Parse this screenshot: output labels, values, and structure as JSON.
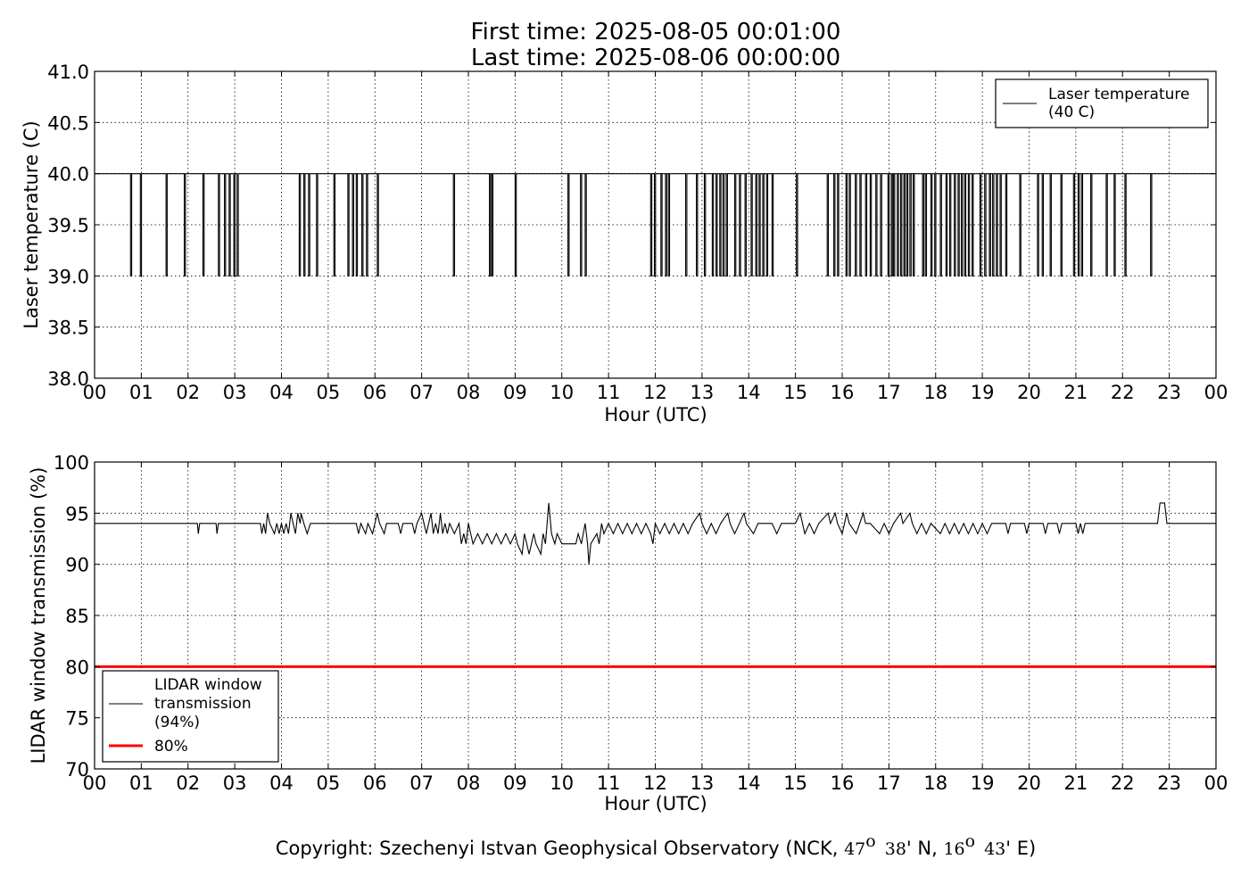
{
  "title_lines": [
    "First time: 2025-08-05 00:01:00",
    "Last time: 2025-08-06 00:00:00"
  ],
  "copyright": {
    "text_before": "Copyright: Szechenyi Istvan Geophysical Observatory (NCK, ",
    "lat_deg": "47",
    "lat_min": "38",
    "lat_tail": "' N, ",
    "lon_deg": "16",
    "lon_min": "43",
    "lon_tail": "' E)",
    "deg_mark": "o"
  },
  "colors": {
    "line": "#000000",
    "threshold": "#ff0000",
    "grid": "#000000"
  },
  "chart_data": [
    {
      "type": "line",
      "xlabel": "Hour (UTC)",
      "ylabel": "Laser temperature (C)",
      "xlim": [
        0,
        24
      ],
      "ylim": [
        38.0,
        41.0
      ],
      "x_tick_labels": [
        "00",
        "01",
        "02",
        "03",
        "04",
        "05",
        "06",
        "07",
        "08",
        "09",
        "10",
        "11",
        "12",
        "13",
        "14",
        "15",
        "16",
        "17",
        "18",
        "19",
        "20",
        "21",
        "22",
        "23",
        "00"
      ],
      "y_ticks": [
        38.0,
        38.5,
        39.0,
        39.5,
        40.0,
        40.5,
        41.0
      ],
      "y_tick_labels": [
        "38.0",
        "38.5",
        "39.0",
        "39.5",
        "40.0",
        "40.5",
        "41.0"
      ],
      "grid": true,
      "legend": {
        "placement": "top-right",
        "entries": [
          "Laser temperature\n(40 C)"
        ]
      },
      "series": [
        {
          "name": "Laser temperature\n(40 C)",
          "baseline": 40.0,
          "dip_value": 39.0,
          "dips_hours": [
            0.77,
            0.98,
            1.53,
            1.92,
            2.32,
            2.65,
            2.78,
            2.88,
            2.98,
            3.05,
            4.38,
            4.48,
            4.58,
            4.75,
            5.12,
            5.42,
            5.52,
            5.6,
            5.72,
            5.82,
            6.05,
            7.68,
            8.45,
            8.5,
            9.0,
            10.13,
            10.4,
            10.5,
            11.9,
            11.98,
            12.12,
            12.22,
            12.28,
            12.65,
            12.88,
            13.05,
            13.22,
            13.3,
            13.38,
            13.45,
            13.52,
            13.7,
            13.8,
            13.92,
            14.05,
            14.15,
            14.22,
            14.3,
            14.38,
            14.5,
            15.02,
            15.68,
            15.82,
            15.9,
            16.08,
            16.15,
            16.28,
            16.38,
            16.5,
            16.6,
            16.72,
            16.82,
            16.98,
            17.05,
            17.1,
            17.18,
            17.25,
            17.32,
            17.38,
            17.45,
            17.52,
            17.72,
            17.78,
            17.9,
            17.98,
            18.1,
            18.22,
            18.3,
            18.4,
            18.48,
            18.55,
            18.62,
            18.7,
            18.78,
            18.95,
            19.05,
            19.15,
            19.22,
            19.3,
            19.38,
            19.5,
            19.8,
            20.18,
            20.28,
            20.45,
            20.68,
            20.95,
            21.05,
            21.12,
            21.32,
            21.65,
            21.82,
            22.05,
            22.6
          ]
        }
      ]
    },
    {
      "type": "line",
      "xlabel": "Hour (UTC)",
      "ylabel": "LIDAR window transmission (%)",
      "xlim": [
        0,
        24
      ],
      "ylim": [
        70,
        100
      ],
      "x_tick_labels": [
        "00",
        "01",
        "02",
        "03",
        "04",
        "05",
        "06",
        "07",
        "08",
        "09",
        "10",
        "11",
        "12",
        "13",
        "14",
        "15",
        "16",
        "17",
        "18",
        "19",
        "20",
        "21",
        "22",
        "23",
        "00"
      ],
      "y_ticks": [
        70,
        75,
        80,
        85,
        90,
        95,
        100
      ],
      "y_tick_labels": [
        "70",
        "75",
        "80",
        "85",
        "90",
        "95",
        "100"
      ],
      "grid": true,
      "legend": {
        "placement": "bottom-left",
        "entries": [
          "LIDAR window\ntransmission\n(94%)",
          "80%"
        ]
      },
      "series": [
        {
          "name": "LIDAR window\ntransmission\n(94%)",
          "baseline": 94,
          "points": [
            [
              0,
              94
            ],
            [
              2.2,
              94
            ],
            [
              2.22,
              93
            ],
            [
              2.25,
              94
            ],
            [
              2.6,
              94
            ],
            [
              2.62,
              93
            ],
            [
              2.65,
              94
            ],
            [
              3.55,
              94
            ],
            [
              3.58,
              93
            ],
            [
              3.62,
              94
            ],
            [
              3.66,
              93
            ],
            [
              3.7,
              95
            ],
            [
              3.75,
              94
            ],
            [
              3.85,
              93
            ],
            [
              3.9,
              94
            ],
            [
              3.95,
              93
            ],
            [
              4.0,
              94
            ],
            [
              4.05,
              93
            ],
            [
              4.1,
              94
            ],
            [
              4.15,
              93
            ],
            [
              4.2,
              95
            ],
            [
              4.25,
              94
            ],
            [
              4.3,
              93
            ],
            [
              4.35,
              95
            ],
            [
              4.4,
              94
            ],
            [
              4.42,
              95
            ],
            [
              4.48,
              94
            ],
            [
              4.55,
              93
            ],
            [
              4.62,
              94
            ],
            [
              4.7,
              94
            ],
            [
              5.0,
              94
            ],
            [
              5.6,
              94
            ],
            [
              5.65,
              93
            ],
            [
              5.7,
              94
            ],
            [
              5.8,
              93
            ],
            [
              5.85,
              94
            ],
            [
              5.95,
              93
            ],
            [
              6.05,
              95
            ],
            [
              6.1,
              94
            ],
            [
              6.2,
              93
            ],
            [
              6.25,
              94
            ],
            [
              6.5,
              94
            ],
            [
              6.55,
              93
            ],
            [
              6.6,
              94
            ],
            [
              6.8,
              94
            ],
            [
              6.85,
              93
            ],
            [
              6.9,
              94
            ],
            [
              7.0,
              95
            ],
            [
              7.05,
              94
            ],
            [
              7.1,
              93
            ],
            [
              7.15,
              94
            ],
            [
              7.2,
              95
            ],
            [
              7.25,
              93
            ],
            [
              7.3,
              94
            ],
            [
              7.35,
              93
            ],
            [
              7.4,
              95
            ],
            [
              7.45,
              93
            ],
            [
              7.5,
              94
            ],
            [
              7.55,
              93
            ],
            [
              7.6,
              94
            ],
            [
              7.7,
              93
            ],
            [
              7.8,
              94
            ],
            [
              7.85,
              92
            ],
            [
              7.9,
              93
            ],
            [
              7.95,
              92
            ],
            [
              8.0,
              94
            ],
            [
              8.05,
              93
            ],
            [
              8.1,
              92
            ],
            [
              8.2,
              93
            ],
            [
              8.3,
              92
            ],
            [
              8.4,
              93
            ],
            [
              8.5,
              92
            ],
            [
              8.6,
              93
            ],
            [
              8.7,
              92
            ],
            [
              8.8,
              93
            ],
            [
              8.9,
              92
            ],
            [
              9.0,
              93
            ],
            [
              9.05,
              92
            ],
            [
              9.15,
              91
            ],
            [
              9.2,
              93
            ],
            [
              9.3,
              91
            ],
            [
              9.4,
              93
            ],
            [
              9.45,
              92
            ],
            [
              9.55,
              91
            ],
            [
              9.6,
              93
            ],
            [
              9.65,
              92
            ],
            [
              9.72,
              96
            ],
            [
              9.78,
              93
            ],
            [
              9.85,
              92
            ],
            [
              9.9,
              93
            ],
            [
              10.0,
              92
            ],
            [
              10.3,
              92
            ],
            [
              10.35,
              93
            ],
            [
              10.42,
              92
            ],
            [
              10.5,
              94
            ],
            [
              10.55,
              92
            ],
            [
              10.58,
              90
            ],
            [
              10.62,
              92
            ],
            [
              10.75,
              93
            ],
            [
              10.8,
              92
            ],
            [
              10.85,
              94
            ],
            [
              10.9,
              93
            ],
            [
              11.0,
              94
            ],
            [
              11.1,
              93
            ],
            [
              11.2,
              94
            ],
            [
              11.3,
              93
            ],
            [
              11.4,
              94
            ],
            [
              11.5,
              93
            ],
            [
              11.6,
              94
            ],
            [
              11.7,
              93
            ],
            [
              11.8,
              94
            ],
            [
              11.9,
              93
            ],
            [
              11.95,
              92
            ],
            [
              12.0,
              94
            ],
            [
              12.1,
              93
            ],
            [
              12.2,
              94
            ],
            [
              12.3,
              93
            ],
            [
              12.4,
              94
            ],
            [
              12.5,
              93
            ],
            [
              12.6,
              94
            ],
            [
              12.7,
              93
            ],
            [
              12.8,
              94
            ],
            [
              12.95,
              95
            ],
            [
              13.0,
              94
            ],
            [
              13.1,
              93
            ],
            [
              13.2,
              94
            ],
            [
              13.3,
              93
            ],
            [
              13.4,
              94
            ],
            [
              13.55,
              95
            ],
            [
              13.6,
              94
            ],
            [
              13.7,
              93
            ],
            [
              13.8,
              94
            ],
            [
              13.9,
              95
            ],
            [
              13.95,
              94
            ],
            [
              14.1,
              93
            ],
            [
              14.2,
              94
            ],
            [
              14.5,
              94
            ],
            [
              14.6,
              93
            ],
            [
              14.7,
              94
            ],
            [
              15.0,
              94
            ],
            [
              15.1,
              95
            ],
            [
              15.15,
              94
            ],
            [
              15.2,
              93
            ],
            [
              15.3,
              94
            ],
            [
              15.4,
              93
            ],
            [
              15.5,
              94
            ],
            [
              15.7,
              95
            ],
            [
              15.75,
              94
            ],
            [
              15.85,
              95
            ],
            [
              15.9,
              94
            ],
            [
              16.0,
              93
            ],
            [
              16.1,
              95
            ],
            [
              16.15,
              94
            ],
            [
              16.3,
              93
            ],
            [
              16.45,
              95
            ],
            [
              16.5,
              94
            ],
            [
              16.6,
              94
            ],
            [
              16.8,
              93
            ],
            [
              16.9,
              94
            ],
            [
              17.0,
              93
            ],
            [
              17.1,
              94
            ],
            [
              17.25,
              95
            ],
            [
              17.3,
              94
            ],
            [
              17.45,
              95
            ],
            [
              17.5,
              94
            ],
            [
              17.6,
              93
            ],
            [
              17.7,
              94
            ],
            [
              17.8,
              93
            ],
            [
              17.9,
              94
            ],
            [
              18.1,
              93
            ],
            [
              18.2,
              94
            ],
            [
              18.3,
              93
            ],
            [
              18.4,
              94
            ],
            [
              18.5,
              93
            ],
            [
              18.6,
              94
            ],
            [
              18.7,
              93
            ],
            [
              18.8,
              94
            ],
            [
              18.9,
              93
            ],
            [
              19.0,
              94
            ],
            [
              19.1,
              93
            ],
            [
              19.2,
              94
            ],
            [
              19.5,
              94
            ],
            [
              19.55,
              93
            ],
            [
              19.6,
              94
            ],
            [
              19.9,
              94
            ],
            [
              19.95,
              93
            ],
            [
              20.0,
              94
            ],
            [
              20.3,
              94
            ],
            [
              20.35,
              93
            ],
            [
              20.4,
              94
            ],
            [
              20.6,
              94
            ],
            [
              20.65,
              93
            ],
            [
              20.7,
              94
            ],
            [
              21.0,
              94
            ],
            [
              21.05,
              93
            ],
            [
              21.1,
              94
            ],
            [
              21.15,
              93
            ],
            [
              21.2,
              94
            ],
            [
              22.75,
              94
            ],
            [
              22.8,
              96
            ],
            [
              22.9,
              96
            ],
            [
              22.95,
              94
            ],
            [
              24,
              94
            ]
          ]
        },
        {
          "name": "80%",
          "type": "hline",
          "value": 80
        }
      ]
    }
  ]
}
